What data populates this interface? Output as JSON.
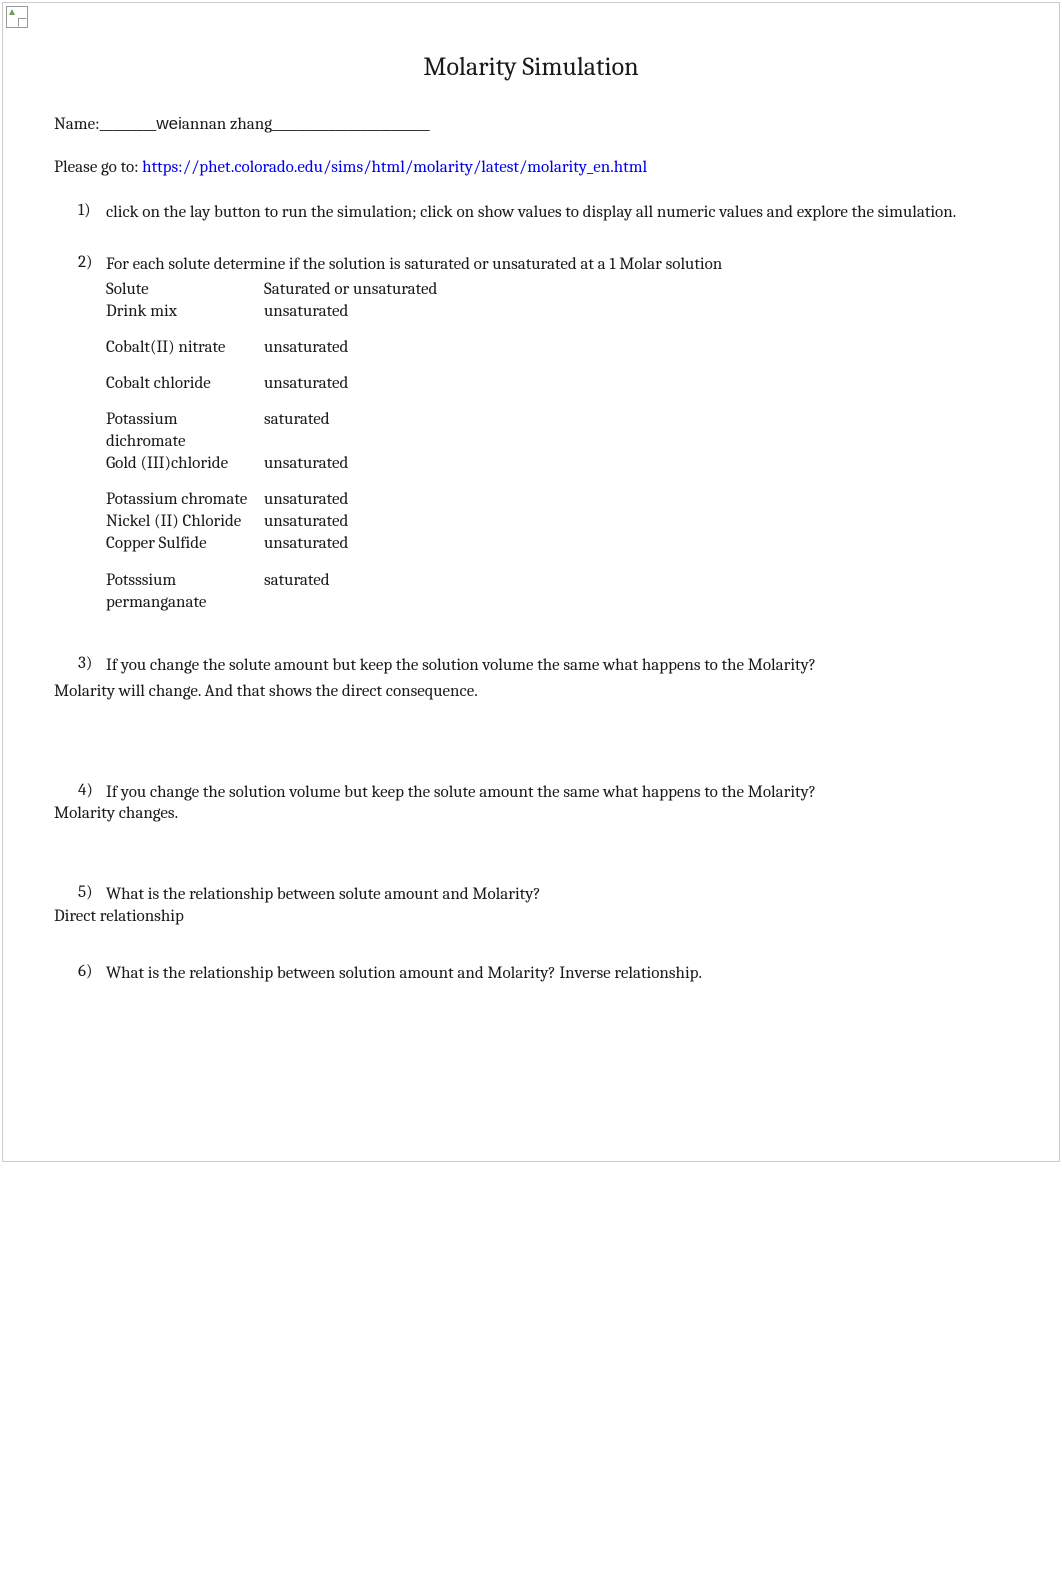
{
  "title": "Molarity Simulation",
  "name_label": "Name:_________",
  "name_wei": "wei",
  "name_rest": "annan zhang_________________________",
  "goto_prefix": "Please go to: ",
  "goto_link": "https://phet.colorado.edu/sims/html/molarity/latest/molarity_en.html",
  "q1": {
    "num": "1)",
    "text": "click on the lay button to run the simulation; click on show values to display all numeric values and explore the simulation."
  },
  "q2": {
    "num": "2)",
    "text": "For each solute determine if the solution is saturated or unsaturated at a 1 Molar solution",
    "header_left": "Solute",
    "header_right": "Saturated or unsaturated",
    "rows": [
      {
        "solute": "Drink mix",
        "state": "unsaturated",
        "gap_after": true
      },
      {
        "solute": "Cobalt(II) nitrate",
        "state": "unsaturated",
        "gap_after": true
      },
      {
        "solute": "Cobalt chloride",
        "state": "unsaturated",
        "gap_after": true
      },
      {
        "solute": "Potassium dichromate",
        "state": "saturated",
        "gap_after": false
      },
      {
        "solute": "Gold (III)chloride",
        "state": "unsaturated",
        "gap_after": true
      },
      {
        "solute": "Potassium chromate",
        "state": "unsaturated",
        "gap_after": false
      },
      {
        "solute": "Nickel (II) Chloride",
        "state": "unsaturated",
        "gap_after": false
      },
      {
        "solute": "Copper Sulfide",
        "state": "unsaturated",
        "gap_after": true
      },
      {
        "solute": "Potsssium permanganate",
        "state": "saturated",
        "gap_after": false
      }
    ]
  },
  "q3": {
    "num": "3)",
    "text": "If you change the solute amount but keep the solution volume the same what happens to the Molarity?",
    "answer": "Molarity will change. And that shows the direct consequence."
  },
  "q4": {
    "num": "4)",
    "text": "If you change the solution volume but keep the solute amount the same what happens to the Molarity?",
    "answer": "Molarity changes."
  },
  "q5": {
    "num": "5)",
    "text": "What is the relationship between solute amount and Molarity?",
    "answer": "Direct relationship"
  },
  "q6": {
    "num": "6)",
    "text": "What is the relationship between solution amount and Molarity? Inverse relationship."
  }
}
